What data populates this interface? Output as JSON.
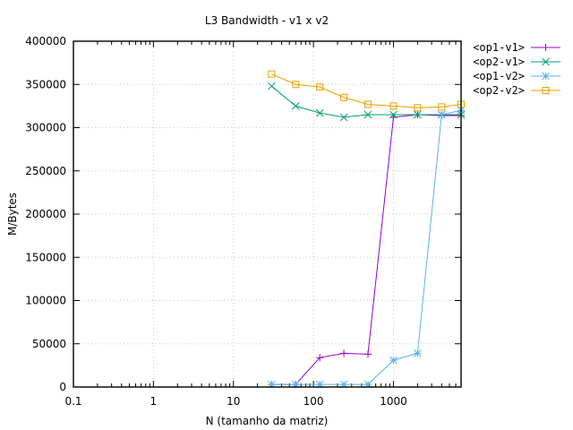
{
  "chart_data": {
    "type": "line",
    "title": "L3 Bandwidth - v1 x v2",
    "xlabel": "N (tamanho da matriz)",
    "ylabel": "M/Bytes",
    "xscale": "log",
    "xlim": [
      0.1,
      7000
    ],
    "ylim": [
      0,
      400000
    ],
    "grid": true,
    "legend_position": "outside-top-right",
    "x_ticks": [
      {
        "value": 0.1,
        "label": "0.1"
      },
      {
        "value": 1,
        "label": "1"
      },
      {
        "value": 10,
        "label": "10"
      },
      {
        "value": 100,
        "label": "100"
      },
      {
        "value": 1000,
        "label": "1000"
      }
    ],
    "y_ticks": [
      {
        "value": 0,
        "label": "0"
      },
      {
        "value": 50000,
        "label": "50000"
      },
      {
        "value": 100000,
        "label": "100000"
      },
      {
        "value": 150000,
        "label": "150000"
      },
      {
        "value": 200000,
        "label": "200000"
      },
      {
        "value": 250000,
        "label": "250000"
      },
      {
        "value": 300000,
        "label": "300000"
      },
      {
        "value": 350000,
        "label": "350000"
      },
      {
        "value": 400000,
        "label": "400000"
      }
    ],
    "series": [
      {
        "name": "<op1-v1>",
        "color": "#9400d3",
        "marker": "plus",
        "x": [
          30,
          60,
          120,
          240,
          480,
          1000,
          2000,
          4000,
          7000
        ],
        "y": [
          3000,
          3000,
          34000,
          39000,
          38000,
          312000,
          315000,
          314000,
          314000
        ]
      },
      {
        "name": "<op2-v1>",
        "color": "#009e73",
        "marker": "cross",
        "x": [
          30,
          60,
          120,
          240,
          480,
          1000,
          2000,
          4000,
          7000
        ],
        "y": [
          348000,
          325000,
          317000,
          312000,
          315000,
          315000,
          315000,
          315000,
          315000
        ]
      },
      {
        "name": "<op1-v2>",
        "color": "#56b4e9",
        "marker": "star",
        "x": [
          30,
          60,
          120,
          240,
          480,
          1000,
          2000,
          4000,
          7000
        ],
        "y": [
          3000,
          3000,
          3000,
          3000,
          3000,
          31000,
          39000,
          315000,
          320000
        ]
      },
      {
        "name": "<op2-v2>",
        "color": "#e69f00",
        "marker": "square",
        "x": [
          30,
          60,
          120,
          240,
          480,
          1000,
          2000,
          4000,
          7000
        ],
        "y": [
          362000,
          350000,
          347000,
          335000,
          327000,
          325000,
          323000,
          324000,
          327000
        ]
      }
    ]
  }
}
